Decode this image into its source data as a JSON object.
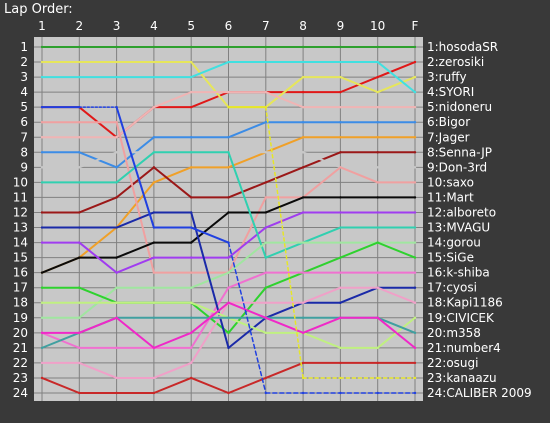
{
  "chart_data": {
    "type": "line",
    "title": "Lap Order:",
    "x_ticks": [
      "1",
      "2",
      "3",
      "4",
      "5",
      "6",
      "7",
      "8",
      "9",
      "10",
      "F"
    ],
    "y_ticks": [
      "1",
      "2",
      "3",
      "4",
      "5",
      "6",
      "7",
      "8",
      "9",
      "10",
      "11",
      "12",
      "13",
      "14",
      "15",
      "16",
      "17",
      "18",
      "19",
      "20",
      "21",
      "22",
      "23",
      "24"
    ],
    "ylim": [
      1,
      24
    ],
    "y_inverted": true,
    "grid": true,
    "legend": "right, at final position",
    "background_color": "#c8c8c8",
    "grid_color": "#808080",
    "series": [
      {
        "name": "1:hosodaSR",
        "color": "#2ea02e",
        "values": [
          1,
          1,
          1,
          1,
          1,
          1,
          1,
          1,
          1,
          1,
          1
        ]
      },
      {
        "name": "2:zerosiki",
        "color": "#e01818",
        "values": [
          5,
          5,
          7,
          5,
          5,
          4,
          4,
          4,
          4,
          3,
          2
        ]
      },
      {
        "name": "3:ruffy",
        "color": "#e6e65a",
        "values": [
          2,
          2,
          2,
          2,
          2,
          5,
          5,
          3,
          3,
          4,
          3
        ]
      },
      {
        "name": "4:SYORI",
        "color": "#40e0e0",
        "values": [
          3,
          3,
          3,
          3,
          3,
          2,
          2,
          2,
          2,
          2,
          4
        ]
      },
      {
        "name": "5:nidoneru",
        "color": "#f0b4b4",
        "values": [
          7,
          7,
          7,
          5,
          4,
          4,
          4,
          5,
          5,
          5,
          5
        ]
      },
      {
        "name": "6:Bigor",
        "color": "#3c8ce6",
        "values": [
          8,
          8,
          9,
          7,
          7,
          7,
          6,
          6,
          6,
          6,
          6
        ]
      },
      {
        "name": "7:Jager",
        "color": "#f0a028",
        "values": [
          16,
          15,
          13,
          10,
          9,
          9,
          8,
          7,
          7,
          7,
          7
        ]
      },
      {
        "name": "8:Senna-JP",
        "color": "#9b1818",
        "values": [
          12,
          12,
          11,
          9,
          11,
          11,
          10,
          9,
          8,
          8,
          8
        ]
      },
      {
        "name": "9:Don-3rd",
        "color": "#c8c8c8",
        "values": [
          9,
          9,
          8,
          8,
          8,
          8,
          8,
          8,
          9,
          9,
          9
        ]
      },
      {
        "name": "10:saxo",
        "color": "#f0a0a0",
        "values": [
          6,
          6,
          6,
          16,
          16,
          16,
          11,
          11,
          9,
          10,
          10
        ]
      },
      {
        "name": "11:Mart",
        "color": "#0a0a0a",
        "values": [
          16,
          15,
          15,
          14,
          14,
          12,
          12,
          11,
          11,
          11,
          11
        ]
      },
      {
        "name": "12:alboreto",
        "color": "#a03cf0",
        "values": [
          14,
          14,
          16,
          15,
          15,
          15,
          13,
          12,
          12,
          12,
          12
        ]
      },
      {
        "name": "13:MVAGU",
        "color": "#30d0b0",
        "values": [
          10,
          10,
          10,
          8,
          8,
          8,
          15,
          14,
          13,
          13,
          13
        ]
      },
      {
        "name": "14:gorou",
        "color": "#a0e6a0",
        "values": [
          19,
          19,
          17,
          17,
          17,
          16,
          14,
          14,
          14,
          14,
          14
        ]
      },
      {
        "name": "15:SiGe",
        "color": "#2ed22e",
        "values": [
          17,
          17,
          18,
          18,
          18,
          20,
          17,
          16,
          15,
          14,
          15
        ]
      },
      {
        "name": "16:k-shiba",
        "color": "#f070d0",
        "values": [
          20,
          21,
          21,
          21,
          21,
          17,
          16,
          16,
          16,
          16,
          16
        ]
      },
      {
        "name": "17:cyosi",
        "color": "#1a2aa8",
        "values": [
          13,
          13,
          13,
          12,
          12,
          21,
          19,
          18,
          18,
          17,
          17
        ]
      },
      {
        "name": "18:Kapi1186",
        "color": "#f0a0c8",
        "values": [
          22,
          22,
          23,
          23,
          22,
          18,
          18,
          18,
          17,
          17,
          18
        ]
      },
      {
        "name": "19:CIVICEK",
        "color": "#c0f080",
        "values": [
          18,
          18,
          18,
          18,
          18,
          19,
          20,
          20,
          21,
          21,
          19
        ]
      },
      {
        "name": "20:m358",
        "color": "#40a0a0",
        "values": [
          21,
          20,
          19,
          19,
          19,
          19,
          19,
          19,
          19,
          19,
          20
        ]
      },
      {
        "name": "21:number4",
        "color": "#f028c8",
        "values": [
          20,
          20,
          19,
          21,
          20,
          18,
          19,
          20,
          19,
          19,
          21
        ]
      },
      {
        "name": "22:osugi",
        "color": "#c82828",
        "values": [
          23,
          24,
          24,
          24,
          23,
          24,
          23,
          22,
          22,
          22,
          22
        ]
      },
      {
        "name": "23:kanaazu",
        "color": "#e6e628",
        "values": [
          null,
          null,
          null,
          null,
          null,
          5,
          5,
          23,
          23,
          23,
          23
        ],
        "style": "dashed"
      },
      {
        "name": "24:CALIBER 2009",
        "color": "#2040e0",
        "values": [
          5,
          5,
          5,
          13,
          13,
          14,
          24,
          24,
          24,
          24,
          24
        ],
        "style": "dotted-then-dashed"
      }
    ]
  }
}
